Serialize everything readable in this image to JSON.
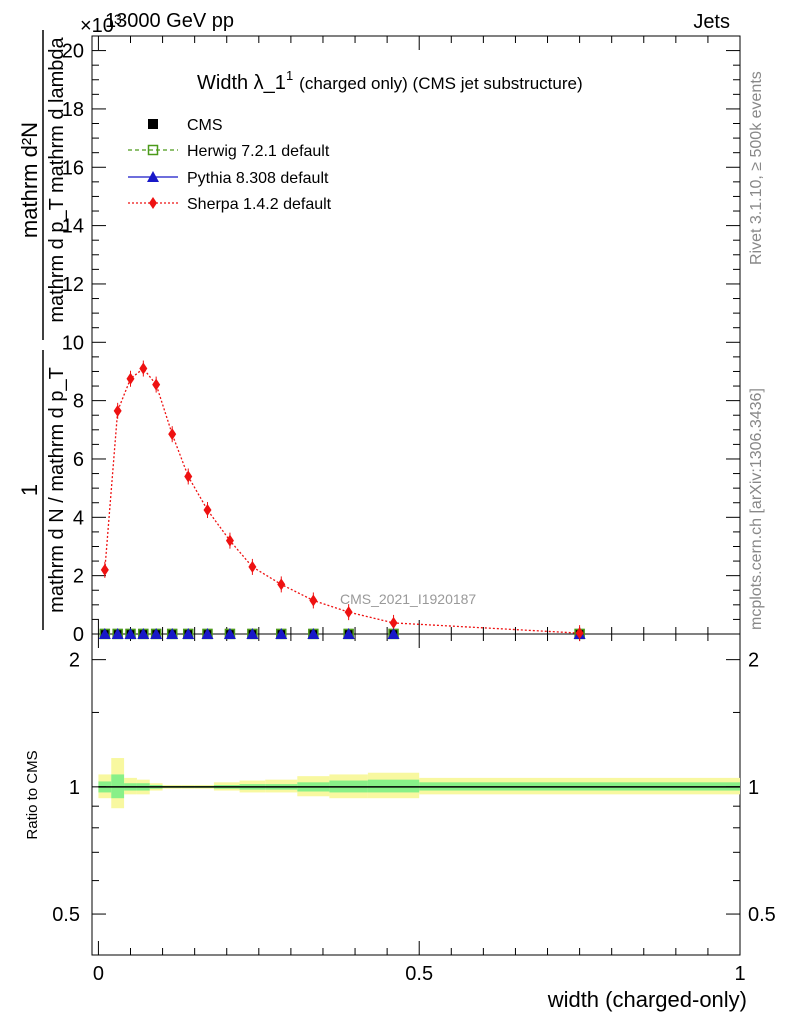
{
  "header": {
    "exponent_label": "×10",
    "exponent_power": "3",
    "left": "13000 GeV pp",
    "right": "Jets"
  },
  "side_text": {
    "rivet": "Rivet 3.1.10, ≥ 500k events",
    "mcplots": "mcplots.cern.ch [arXiv:1306.3436]"
  },
  "chart_data": [
    {
      "type": "line",
      "panel": "main",
      "title_main": "Width λ_1",
      "title_sup": "1",
      "title_rest": "(charged only) (CMS jet substructure)",
      "ylabel_top": "mathrm d²N",
      "ylabel_bottom": "mathrm d p_T mathrm d lambda",
      "ylabel_prefix_top": "1",
      "ylabel_prefix_bottom": "mathrm d N / mathrm d p_T",
      "ylim": [
        0,
        20500
      ],
      "yticks": [
        0,
        2,
        4,
        6,
        8,
        10,
        12,
        14,
        16,
        18,
        20
      ],
      "ytick_scale": 1000,
      "xlim": [
        -0.01,
        1.0
      ],
      "watermark": "CMS_2021_I1920187",
      "legend_position": "top-left",
      "series": [
        {
          "name": "CMS",
          "color": "#000000",
          "marker": "square",
          "x": [
            0.01,
            0.03,
            0.05,
            0.07,
            0.09,
            0.115,
            0.14,
            0.17,
            0.205,
            0.24,
            0.285,
            0.335,
            0.39,
            0.46,
            0.75
          ],
          "values": [
            2,
            2,
            2,
            2,
            2,
            2,
            2,
            2,
            2,
            2,
            2,
            2,
            2,
            2,
            2
          ]
        },
        {
          "name": "Herwig 7.2.1 default",
          "color": "#4c9a1a",
          "marker": "open-square",
          "x": [
            0.01,
            0.03,
            0.05,
            0.07,
            0.09,
            0.115,
            0.14,
            0.17,
            0.205,
            0.24,
            0.285,
            0.335,
            0.39,
            0.46,
            0.75
          ],
          "values": [
            2,
            2,
            2,
            2,
            2,
            2,
            2,
            2,
            2,
            2,
            2,
            2,
            2,
            2,
            2
          ]
        },
        {
          "name": "Pythia 8.308 default",
          "color": "#1818c8",
          "marker": "triangle",
          "x": [
            0.01,
            0.03,
            0.05,
            0.07,
            0.09,
            0.115,
            0.14,
            0.17,
            0.205,
            0.24,
            0.285,
            0.335,
            0.39,
            0.46,
            0.75
          ],
          "values": [
            2,
            2,
            2,
            2,
            2,
            2,
            2,
            2,
            2,
            2,
            2,
            2,
            2,
            2,
            2
          ]
        },
        {
          "name": "Sherpa 1.4.2 default",
          "color": "#ee1111",
          "marker": "diamond",
          "x": [
            0.01,
            0.03,
            0.05,
            0.07,
            0.09,
            0.115,
            0.14,
            0.17,
            0.205,
            0.24,
            0.285,
            0.335,
            0.39,
            0.46,
            0.75
          ],
          "values": [
            2200,
            7650,
            8750,
            9100,
            8550,
            6850,
            5400,
            4250,
            3200,
            2300,
            1700,
            1150,
            750,
            380,
            30
          ]
        }
      ]
    },
    {
      "type": "line",
      "panel": "ratio",
      "ylabel": "Ratio to CMS",
      "xlabel": "width (charged-only)",
      "ylim": [
        0.4,
        2.3
      ],
      "log_scale_y": true,
      "yticks": [
        0.5,
        1,
        2
      ],
      "xlim": [
        -0.01,
        1.0
      ],
      "xticks": [
        0,
        0.5,
        1
      ],
      "xtick_labels": [
        "0",
        "0.5",
        "1"
      ],
      "reference_line": 1,
      "bands": [
        {
          "x0": 0.0,
          "x1": 0.02,
          "inner": [
            0.97,
            1.03
          ],
          "outer": [
            0.94,
            1.07
          ]
        },
        {
          "x0": 0.02,
          "x1": 0.04,
          "inner": [
            0.94,
            1.07
          ],
          "outer": [
            0.89,
            1.17
          ]
        },
        {
          "x0": 0.04,
          "x1": 0.06,
          "inner": [
            0.98,
            1.02
          ],
          "outer": [
            0.96,
            1.05
          ]
        },
        {
          "x0": 0.06,
          "x1": 0.08,
          "inner": [
            0.98,
            1.02
          ],
          "outer": [
            0.96,
            1.04
          ]
        },
        {
          "x0": 0.08,
          "x1": 0.1,
          "inner": [
            0.99,
            1.01
          ],
          "outer": [
            0.98,
            1.02
          ]
        },
        {
          "x0": 0.1,
          "x1": 0.13,
          "inner": [
            0.995,
            1.005
          ],
          "outer": [
            0.99,
            1.01
          ]
        },
        {
          "x0": 0.13,
          "x1": 0.15,
          "inner": [
            0.995,
            1.005
          ],
          "outer": [
            0.99,
            1.01
          ]
        },
        {
          "x0": 0.15,
          "x1": 0.18,
          "inner": [
            0.995,
            1.005
          ],
          "outer": [
            0.99,
            1.01
          ]
        },
        {
          "x0": 0.18,
          "x1": 0.22,
          "inner": [
            0.99,
            1.01
          ],
          "outer": [
            0.98,
            1.025
          ]
        },
        {
          "x0": 0.22,
          "x1": 0.26,
          "inner": [
            0.985,
            1.015
          ],
          "outer": [
            0.97,
            1.035
          ]
        },
        {
          "x0": 0.26,
          "x1": 0.31,
          "inner": [
            0.985,
            1.015
          ],
          "outer": [
            0.97,
            1.04
          ]
        },
        {
          "x0": 0.31,
          "x1": 0.36,
          "inner": [
            0.975,
            1.025
          ],
          "outer": [
            0.95,
            1.06
          ]
        },
        {
          "x0": 0.36,
          "x1": 0.42,
          "inner": [
            0.97,
            1.035
          ],
          "outer": [
            0.94,
            1.07
          ]
        },
        {
          "x0": 0.42,
          "x1": 0.5,
          "inner": [
            0.97,
            1.04
          ],
          "outer": [
            0.94,
            1.08
          ]
        },
        {
          "x0": 0.5,
          "x1": 1.0,
          "inner": [
            0.98,
            1.025
          ],
          "outer": [
            0.96,
            1.05
          ]
        }
      ],
      "band_colors": {
        "inner": "#88f088",
        "outer": "#f8f8a0"
      }
    }
  ]
}
